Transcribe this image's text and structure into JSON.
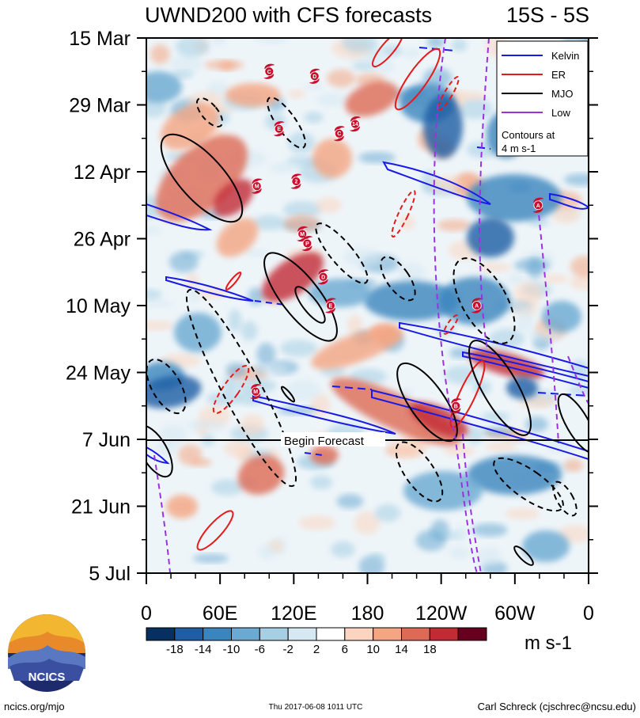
{
  "chart_data": {
    "type": "heatmap",
    "title": "UWND200 with CFS forecasts",
    "region": "15S - 5S",
    "x_ticks": [
      "0",
      "60E",
      "120E",
      "180",
      "120W",
      "60W",
      "0"
    ],
    "x_tick_values": [
      0,
      60,
      120,
      180,
      240,
      300,
      360
    ],
    "xlim": [
      0,
      360
    ],
    "y_ticks": [
      "15 Mar",
      "29 Mar",
      "12 Apr",
      "26 Apr",
      "10 May",
      "24 May",
      "7 Jun",
      "21 Jun",
      "5 Jul"
    ],
    "ylim": [
      "2017-03-15",
      "2017-07-05"
    ],
    "colorbar_labels": [
      "-18",
      "-14",
      "-10",
      "-6",
      "-2",
      "2",
      "6",
      "10",
      "14",
      "18"
    ],
    "colorbar_colors": [
      "#053061",
      "#1f5da4",
      "#3a85be",
      "#6aa9d2",
      "#a6cfe4",
      "#d6e8f2",
      "#ffffff",
      "#fbd5c0",
      "#f4a582",
      "#de6a55",
      "#c22a34",
      "#67001f"
    ],
    "units": "m s-1",
    "legend": [
      {
        "label": "Kelvin",
        "color": "#1a1ae6"
      },
      {
        "label": "ER",
        "color": "#e61a1a"
      },
      {
        "label": "MJO",
        "color": "#000000"
      },
      {
        "label": "Low",
        "color": "#9a32e0"
      }
    ],
    "legend_note": [
      "Contours at",
      "4 m s-1"
    ],
    "forecast_start": "2017-06-07",
    "forecast_label": "Begin Forecast",
    "cyclone_markers": [
      {
        "lon": 100,
        "date": "2017-03-22",
        "id": "C"
      },
      {
        "lon": 137,
        "date": "2017-03-23",
        "id": "D"
      },
      {
        "lon": 108,
        "date": "2017-04-03",
        "id": "E"
      },
      {
        "lon": 157,
        "date": "2017-04-04",
        "id": "C"
      },
      {
        "lon": 170,
        "date": "2017-04-02",
        "id": "14"
      },
      {
        "lon": 90,
        "date": "2017-04-15",
        "id": "M"
      },
      {
        "lon": 122,
        "date": "2017-04-14",
        "id": "2"
      },
      {
        "lon": 127,
        "date": "2017-04-25",
        "id": "M"
      },
      {
        "lon": 131,
        "date": "2017-04-27",
        "id": "P"
      },
      {
        "lon": 144,
        "date": "2017-05-04",
        "id": "D"
      },
      {
        "lon": 150,
        "date": "2017-05-10",
        "id": "E"
      },
      {
        "lon": 269,
        "date": "2017-05-10",
        "id": "A"
      },
      {
        "lon": 319,
        "date": "2017-04-19",
        "id": "A"
      },
      {
        "lon": 89,
        "date": "2017-05-28",
        "id": "M"
      },
      {
        "lon": 252,
        "date": "2017-05-31",
        "id": "B"
      }
    ]
  },
  "footer": {
    "logo_text": "NCICS",
    "left": "ncics.org/mjo",
    "center": "Thu 2017-06-08 1011 UTC",
    "right": "Carl Schreck (cjschrec@ncsu.edu)"
  }
}
